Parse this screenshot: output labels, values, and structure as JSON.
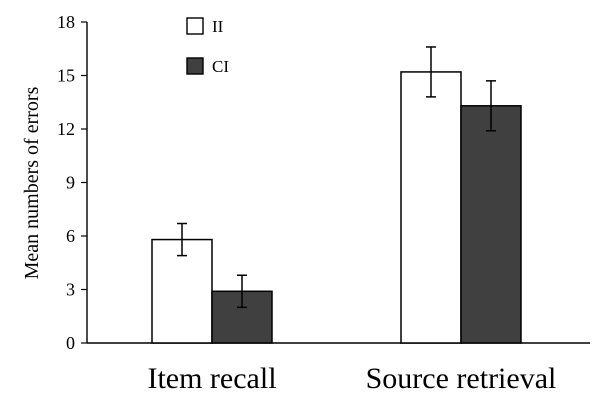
{
  "chart_data": {
    "type": "bar",
    "categories": [
      "Item recall",
      "Source retrieval"
    ],
    "series": [
      {
        "name": "II",
        "values": [
          5.8,
          15.2
        ],
        "errors": [
          0.9,
          1.4
        ],
        "color": "#ffffff"
      },
      {
        "name": "CI",
        "values": [
          2.9,
          13.3
        ],
        "errors": [
          0.9,
          1.4
        ],
        "color": "#404040"
      }
    ],
    "ylabel": "Mean numbers of errors",
    "xlabel": "",
    "ylim": [
      0,
      18
    ],
    "yticks": [
      0,
      3,
      6,
      9,
      12,
      15,
      18
    ],
    "grid": false,
    "legend_position": "top-left"
  }
}
